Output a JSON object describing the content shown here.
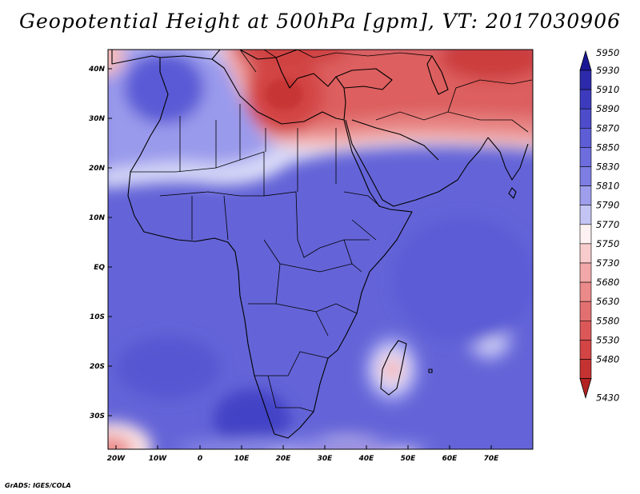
{
  "title": "Geopotential Height at 500hPa [gpm], VT: 2017030906",
  "credit": "GrADS: IGES/COLA",
  "lat_labels": [
    "40N",
    "30N",
    "20N",
    "10N",
    "EQ",
    "10S",
    "20S",
    "30S"
  ],
  "lon_labels": [
    "20W",
    "10W",
    "0",
    "10E",
    "20E",
    "30E",
    "40E",
    "50E",
    "60E",
    "70E"
  ],
  "colorbar": {
    "levels": [
      {
        "label": "5950",
        "color": "#1b1896"
      },
      {
        "label": "5930",
        "color": "#2c2aab"
      },
      {
        "label": "5910",
        "color": "#3d3bbd"
      },
      {
        "label": "5890",
        "color": "#4d4ccb"
      },
      {
        "label": "5870",
        "color": "#5d5dd6"
      },
      {
        "label": "5850",
        "color": "#6d6ddd"
      },
      {
        "label": "5830",
        "color": "#7d7de4"
      },
      {
        "label": "5810",
        "color": "#9e9eec"
      },
      {
        "label": "5790",
        "color": "#c4c4f4"
      },
      {
        "label": "5770",
        "color": "#fdf1f1"
      },
      {
        "label": "5750",
        "color": "#f8cccc"
      },
      {
        "label": "5730",
        "color": "#f2a8a8"
      },
      {
        "label": "5680",
        "color": "#eb8a8a"
      },
      {
        "label": "5630",
        "color": "#e37070"
      },
      {
        "label": "5580",
        "color": "#dc5858"
      },
      {
        "label": "5530",
        "color": "#d34444"
      },
      {
        "label": "5480",
        "color": "#c43232"
      },
      {
        "label": "5430",
        "color": "#b22222"
      }
    ]
  }
}
